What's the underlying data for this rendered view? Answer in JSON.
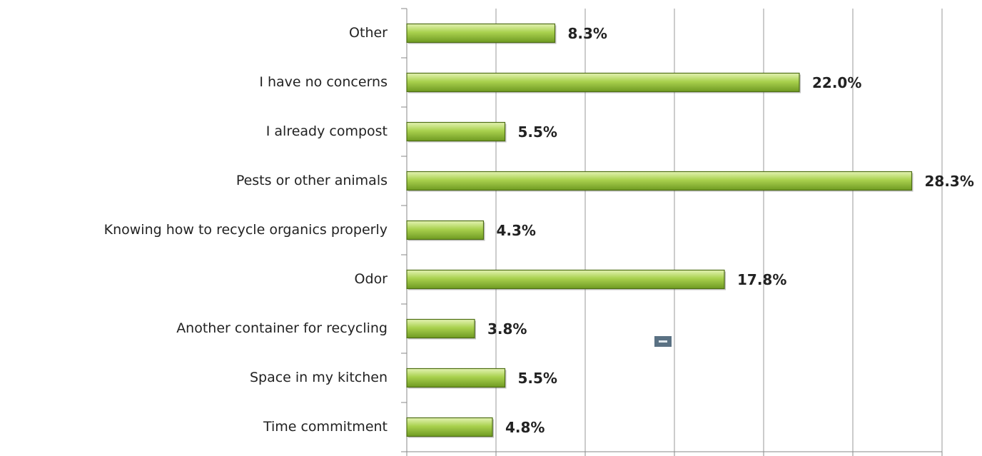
{
  "chart_data": {
    "type": "bar",
    "orientation": "horizontal",
    "categories": [
      "Other",
      "I have no concerns",
      "I already compost",
      "Pests or other animals",
      "Knowing how to recycle organics properly",
      "Odor",
      "Another container for recycling",
      "Space in my kitchen",
      "Time commitment"
    ],
    "values": [
      8.3,
      22.0,
      5.5,
      28.3,
      4.3,
      17.8,
      3.8,
      5.5,
      4.8
    ],
    "value_labels": [
      "8.3%",
      "22.0%",
      "5.5%",
      "28.3%",
      "4.3%",
      "17.8%",
      "3.8%",
      "5.5%",
      "4.8%"
    ],
    "color": "#9bc53d",
    "xlim": [
      0,
      30
    ],
    "xticks": [
      0,
      5,
      10,
      15,
      20,
      25,
      30
    ],
    "grid": true
  }
}
